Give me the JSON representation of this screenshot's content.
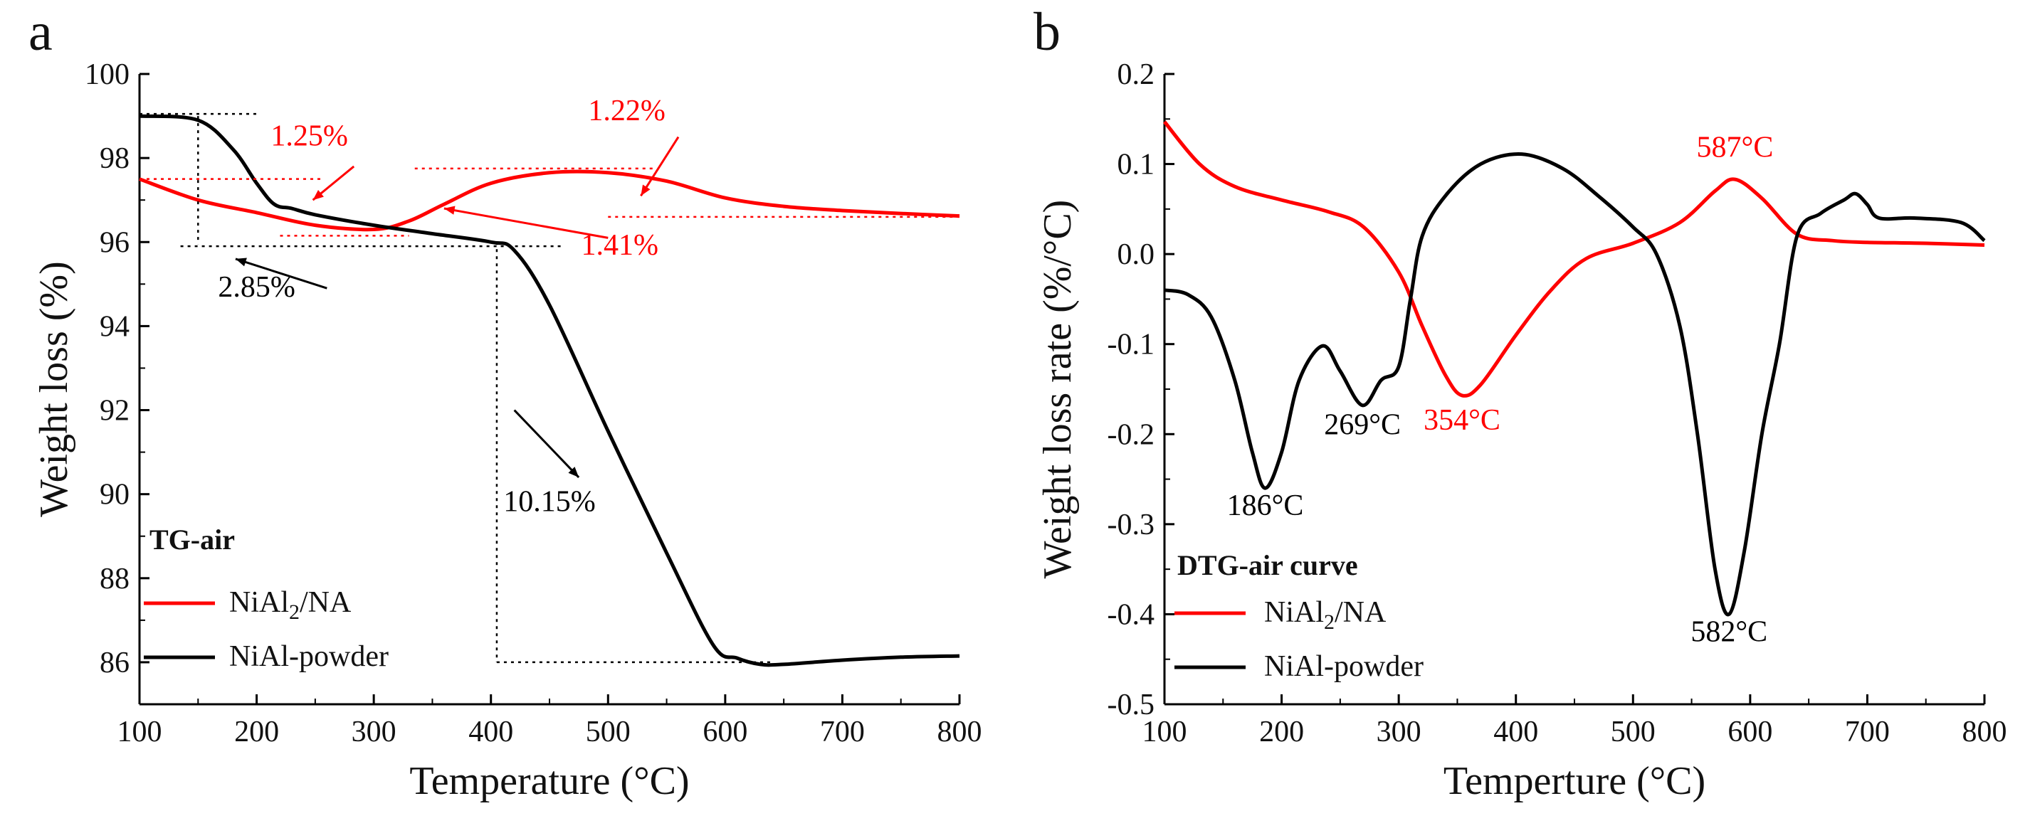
{
  "colors": {
    "red": "#ff0000",
    "black": "#000000"
  },
  "chart_data": [
    {
      "type": "line",
      "panel_label": "a",
      "title": "TG-air",
      "xlabel": "Temperature (°C)",
      "ylabel": "Weight loss (%)",
      "xlim": [
        100,
        800
      ],
      "ylim": [
        85,
        100
      ],
      "xticks": [
        100,
        200,
        300,
        400,
        500,
        600,
        700,
        800
      ],
      "yticks": [
        86,
        88,
        90,
        92,
        94,
        96,
        98,
        100
      ],
      "legend_position": "bottom-left",
      "series": [
        {
          "name": "NiAl2/NA",
          "name_parts": [
            "NiAl",
            "2",
            "/NA"
          ],
          "color": "#ff0000",
          "x": [
            100,
            150,
            200,
            250,
            300,
            330,
            360,
            400,
            450,
            500,
            550,
            600,
            650,
            700,
            750,
            800
          ],
          "y": [
            97.5,
            97.0,
            96.7,
            96.4,
            96.3,
            96.5,
            96.9,
            97.4,
            97.65,
            97.65,
            97.45,
            97.05,
            96.85,
            96.75,
            96.68,
            96.62
          ]
        },
        {
          "name": "NiAl-powder",
          "color": "#000000",
          "x": [
            100,
            150,
            180,
            200,
            215,
            230,
            250,
            300,
            350,
            400,
            420,
            450,
            500,
            550,
            590,
            610,
            630,
            650,
            700,
            750,
            800
          ],
          "y": [
            99.0,
            98.9,
            98.2,
            97.4,
            96.9,
            96.8,
            96.65,
            96.4,
            96.2,
            96.0,
            95.8,
            94.5,
            91.5,
            88.6,
            86.4,
            86.1,
            85.95,
            85.95,
            86.05,
            86.12,
            86.15
          ]
        }
      ],
      "annotations": [
        {
          "text": "1.25%",
          "color": "#ff0000",
          "x": 245,
          "y": 98.3
        },
        {
          "text": "1.22%",
          "color": "#ff0000",
          "x": 516,
          "y": 98.9
        },
        {
          "text": "1.41%",
          "color": "#ff0000",
          "x": 510,
          "y": 95.7
        },
        {
          "text": "2.85%",
          "color": "#000000",
          "x": 200,
          "y": 94.7
        },
        {
          "text": "10.15%",
          "color": "#000000",
          "x": 450,
          "y": 89.6
        }
      ]
    },
    {
      "type": "line",
      "panel_label": "b",
      "title": "DTG-air curve",
      "xlabel": "Temperture (°C)",
      "ylabel": "Weight loss rate (%/°C)",
      "xlim": [
        100,
        800
      ],
      "ylim": [
        -0.5,
        0.2
      ],
      "xticks": [
        100,
        200,
        300,
        400,
        500,
        600,
        700,
        800
      ],
      "yticks": [
        -0.5,
        -0.4,
        -0.3,
        -0.2,
        -0.1,
        0.0,
        0.1,
        0.2
      ],
      "ytick_labels": [
        "-0.5",
        "-0.4",
        "-0.3",
        "-0.2",
        "-0.1",
        "0.0",
        "0.1",
        "0.2"
      ],
      "legend_position": "bottom-left",
      "series": [
        {
          "name": "NiAl2/NA",
          "name_parts": [
            "NiAl",
            "2",
            "/NA"
          ],
          "color": "#ff0000",
          "x": [
            100,
            130,
            160,
            200,
            240,
            270,
            300,
            320,
            340,
            354,
            370,
            400,
            430,
            460,
            500,
            540,
            570,
            587,
            610,
            640,
            670,
            700,
            750,
            800
          ],
          "y": [
            0.147,
            0.1,
            0.075,
            0.06,
            0.047,
            0.03,
            -0.02,
            -0.08,
            -0.135,
            -0.157,
            -0.145,
            -0.09,
            -0.04,
            -0.005,
            0.012,
            0.035,
            0.07,
            0.083,
            0.062,
            0.022,
            0.015,
            0.013,
            0.012,
            0.01
          ]
        },
        {
          "name": "NiAl-powder",
          "color": "#000000",
          "x": [
            100,
            120,
            140,
            160,
            175,
            186,
            200,
            215,
            235,
            250,
            269,
            285,
            300,
            310,
            320,
            340,
            370,
            405,
            440,
            470,
            500,
            520,
            540,
            555,
            570,
            582,
            595,
            610,
            625,
            640,
            660,
            680,
            690,
            700,
            710,
            740,
            780,
            800
          ],
          "y": [
            -0.04,
            -0.045,
            -0.07,
            -0.14,
            -0.22,
            -0.26,
            -0.22,
            -0.14,
            -0.102,
            -0.13,
            -0.168,
            -0.14,
            -0.125,
            -0.05,
            0.02,
            0.065,
            0.1,
            0.111,
            0.095,
            0.065,
            0.03,
            0.0,
            -0.08,
            -0.2,
            -0.35,
            -0.4,
            -0.33,
            -0.2,
            -0.1,
            0.02,
            0.045,
            0.06,
            0.067,
            0.055,
            0.04,
            0.04,
            0.035,
            0.015
          ]
        }
      ],
      "annotations": [
        {
          "text": "186°C",
          "color": "#000000",
          "x": 186,
          "y": -0.29
        },
        {
          "text": "269°C",
          "color": "#000000",
          "x": 269,
          "y": -0.2
        },
        {
          "text": "354°C",
          "color": "#ff0000",
          "x": 354,
          "y": -0.195
        },
        {
          "text": "587°C",
          "color": "#ff0000",
          "x": 587,
          "y": 0.108
        },
        {
          "text": "582°C",
          "color": "#000000",
          "x": 582,
          "y": -0.43
        }
      ]
    }
  ]
}
